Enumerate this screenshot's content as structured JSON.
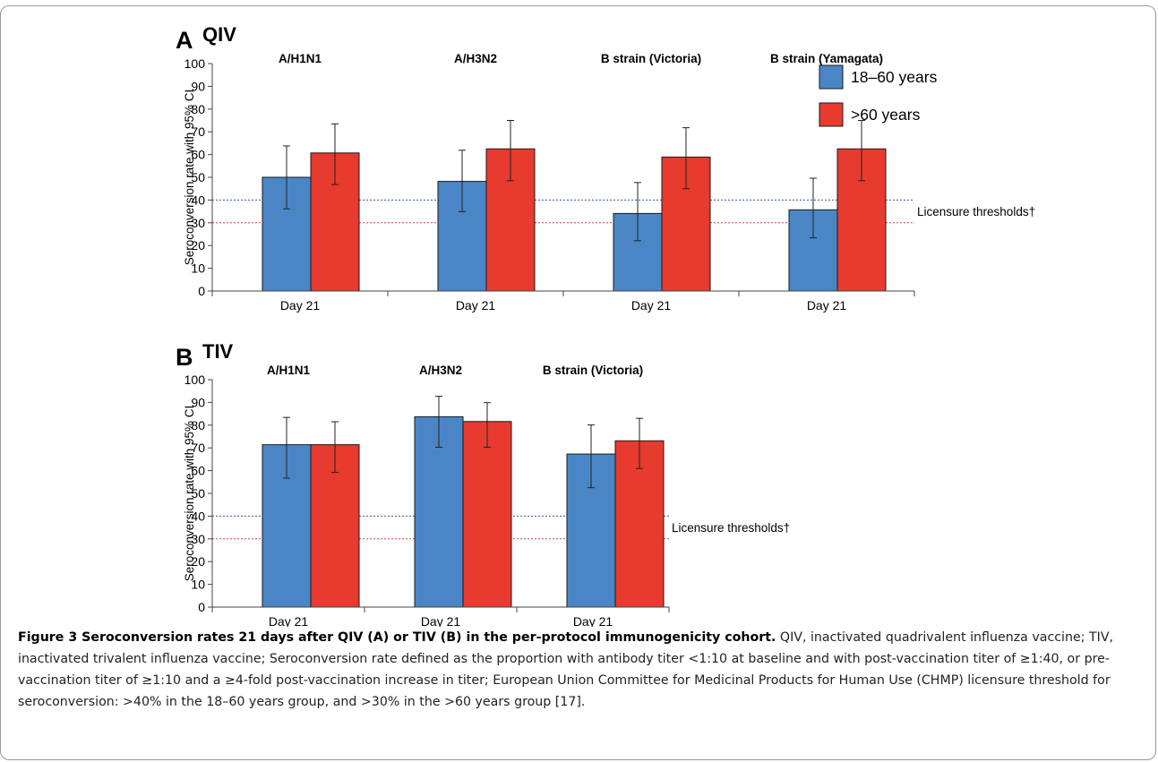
{
  "chart_data": [
    {
      "type": "bar",
      "panel_letter": "A",
      "title": "QIV",
      "ylabel": "Seroconversion rate with 95% CI",
      "ylim": [
        0,
        100
      ],
      "yticks": [
        0,
        10,
        20,
        30,
        40,
        50,
        60,
        70,
        80,
        90,
        100
      ],
      "groups": [
        "A/H1N1",
        "A/H3N2",
        "B strain (Victoria)",
        "B strain (Yamagata)"
      ],
      "categories": [
        "Day 21",
        "Day 21",
        "Day 21",
        "Day 21"
      ],
      "series": [
        {
          "name": "18–60 years",
          "color": "#4a86c5",
          "values": [
            50,
            48.2,
            34.1,
            35.7
          ],
          "ci_low": [
            36.1,
            34.9,
            22.1,
            23.4
          ],
          "ci_high": [
            63.8,
            61.9,
            47.7,
            49.6
          ]
        },
        {
          "name": ">60 years",
          "color": "#e63b2e",
          "values": [
            60.7,
            62.5,
            58.9,
            62.5
          ],
          "ci_low": [
            46.8,
            48.5,
            45.0,
            48.5
          ],
          "ci_high": [
            73.5,
            75.0,
            71.8,
            75.0
          ]
        }
      ],
      "thresholds": [
        {
          "value": 40,
          "color": "#3355aa"
        },
        {
          "value": 30,
          "color": "#d23a3a"
        }
      ],
      "threshold_label": "Licensure thresholds†",
      "legend": "top-right",
      "grid": false
    },
    {
      "type": "bar",
      "panel_letter": "B",
      "title": "TIV",
      "ylabel": "Seroconversion rate with 95% CI",
      "ylim": [
        0,
        100
      ],
      "yticks": [
        0,
        10,
        20,
        30,
        40,
        50,
        60,
        70,
        80,
        90,
        100
      ],
      "groups": [
        "A/H1N1",
        "A/H3N2",
        "B strain (Victoria)"
      ],
      "categories": [
        "Day 21",
        "Day 21",
        "Day 21"
      ],
      "series": [
        {
          "name": "18–60 years",
          "color": "#4a86c5",
          "values": [
            71.4,
            83.7,
            67.3
          ],
          "ci_low": [
            56.7,
            70.3,
            52.5
          ],
          "ci_high": [
            83.4,
            92.7,
            80.1
          ]
        },
        {
          "name": ">60 years",
          "color": "#e63b2e",
          "values": [
            71.4,
            81.6,
            73.1
          ],
          "ci_low": [
            59.2,
            70.3,
            60.9
          ],
          "ci_high": [
            81.5,
            89.9,
            83.0
          ]
        }
      ],
      "thresholds": [
        {
          "value": 40,
          "color": "#3355aa"
        },
        {
          "value": 30,
          "color": "#d23a3a"
        }
      ],
      "threshold_label": "Licensure thresholds†",
      "grid": false
    }
  ],
  "caption": {
    "label": "Figure 3 Seroconversion rates 21 days after QIV (A) or TIV (B) in the per-protocol immunogenicity cohort.",
    "text": " QIV, inactivated quadrivalent influenza vaccine; TIV, inactivated trivalent influenza vaccine; Seroconversion rate defined as the proportion with antibody titer <1:10 at baseline and with post-vaccination titer of ≥1:40, or pre-vaccination titer of ≥1:10 and a ≥4-fold post-vaccination increase in titer; European Union Committee for Medicinal Products for Human Use (CHMP) licensure threshold for seroconversion: >40% in the 18–60 years group, and >30% in the >60 years group [17]."
  }
}
